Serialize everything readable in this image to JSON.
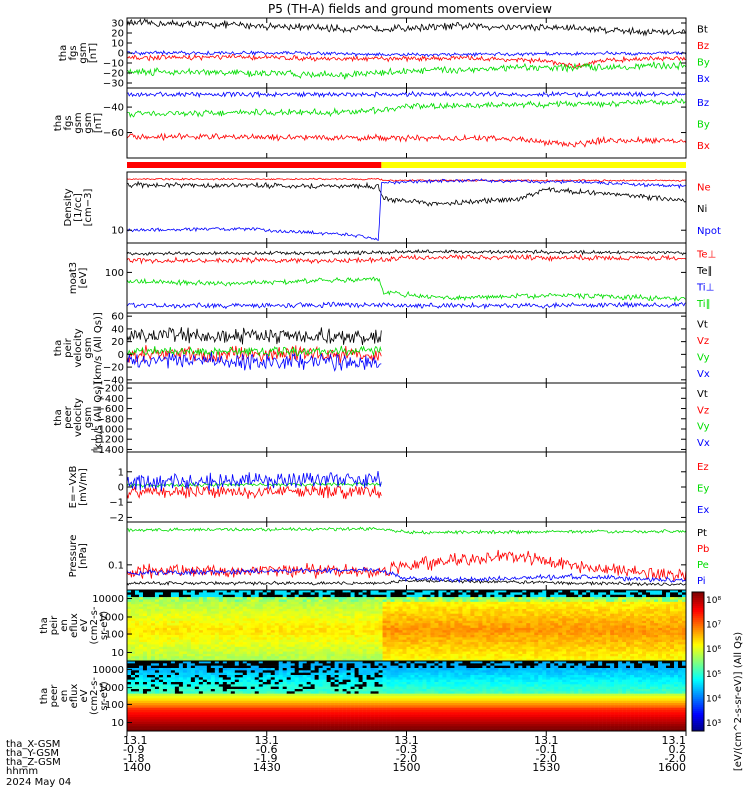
{
  "chart_data": {
    "type": "line",
    "title": "P5 (TH-A) fields and ground moments overview",
    "date": "2024 May 04",
    "x_ticks": [
      "1400",
      "1430",
      "1500",
      "1530",
      "1600"
    ],
    "orbit_rows": [
      {
        "label": "tha_X-GSM",
        "values": [
          "13.1",
          "13.1",
          "13.1",
          "13.1",
          "13.1"
        ]
      },
      {
        "label": "tha_Y-GSM",
        "values": [
          "-0.9",
          "-0.6",
          "-0.3",
          "-0.1",
          "0.2"
        ]
      },
      {
        "label": "tha_Z-GSM",
        "values": [
          "-1.8",
          "-1.9",
          "-2.0",
          "-2.0",
          "-2.0"
        ]
      },
      {
        "label": "hhmm",
        "values": [
          "1400",
          "1430",
          "1500",
          "1530",
          "1600"
        ]
      }
    ],
    "mode_bar": {
      "segments": [
        {
          "from": 0.0,
          "to": 0.455,
          "color": "#ff0000"
        },
        {
          "from": 0.455,
          "to": 1.0,
          "color": "#ffff00"
        }
      ]
    },
    "panels": [
      {
        "ylabel": [
          "tha",
          "fgs",
          "gsm",
          "[nT]"
        ],
        "ylim": [
          -35,
          35
        ],
        "ticks": [
          "30",
          "20",
          "10",
          "0",
          "−10",
          "−20",
          "−30"
        ],
        "series": [
          {
            "name": "Bt",
            "color": "#000000",
            "trace": [
              [
                0,
                30
              ],
              [
                0.1,
                29
              ],
              [
                0.2,
                28
              ],
              [
                0.3,
                26
              ],
              [
                0.4,
                24
              ],
              [
                0.5,
                25
              ],
              [
                0.6,
                27
              ],
              [
                0.7,
                26
              ],
              [
                0.8,
                25
              ],
              [
                0.9,
                22
              ],
              [
                1,
                20
              ]
            ],
            "noise": 3
          },
          {
            "name": "Bz",
            "color": "#ff0000",
            "trace": [
              [
                0,
                -5
              ],
              [
                0.2,
                -4
              ],
              [
                0.4,
                -6
              ],
              [
                0.6,
                -5
              ],
              [
                0.75,
                -8
              ],
              [
                0.8,
                -14
              ],
              [
                0.85,
                -7
              ],
              [
                1,
                -5
              ]
            ],
            "noise": 2
          },
          {
            "name": "By",
            "color": "#00dd00",
            "trace": [
              [
                0,
                -18
              ],
              [
                0.2,
                -20
              ],
              [
                0.4,
                -22
              ],
              [
                0.5,
                -18
              ],
              [
                0.7,
                -15
              ],
              [
                0.85,
                -14
              ],
              [
                1,
                -12
              ]
            ],
            "noise": 3
          },
          {
            "name": "Bx",
            "color": "#0000ff",
            "trace": [
              [
                0,
                0
              ],
              [
                0.3,
                0
              ],
              [
                0.5,
                -2
              ],
              [
                0.7,
                -1
              ],
              [
                1,
                0
              ]
            ],
            "noise": 1.5
          }
        ]
      },
      {
        "ylabel": [
          "tha",
          "fgs",
          "gsm",
          "gsm",
          "[nT]"
        ],
        "ylim": [
          -80,
          -25
        ],
        "ticks": [
          "−40",
          "−60"
        ],
        "series": [
          {
            "name": "Bz",
            "color": "#0000ff",
            "trace": [
              [
                0,
                -30
              ],
              [
                1,
                -30
              ]
            ],
            "noise": 1.5
          },
          {
            "name": "By",
            "color": "#00dd00",
            "trace": [
              [
                0,
                -45
              ],
              [
                0.4,
                -44
              ],
              [
                0.5,
                -40
              ],
              [
                0.7,
                -38
              ],
              [
                1,
                -36
              ]
            ],
            "noise": 2
          },
          {
            "name": "Bx",
            "color": "#ff0000",
            "trace": [
              [
                0,
                -63
              ],
              [
                0.4,
                -64
              ],
              [
                0.7,
                -65
              ],
              [
                0.8,
                -70
              ],
              [
                0.85,
                -66
              ],
              [
                1,
                -66
              ]
            ],
            "noise": 2
          }
        ]
      },
      {
        "ylabel": [
          "Density",
          "[1/cc]",
          "[cm−3]"
        ],
        "ylim": [
          0,
          1
        ],
        "ticks": [
          "10"
        ],
        "tick_pos": [
          0.82
        ],
        "series": [
          {
            "name": "Ne",
            "color": "#ff0000",
            "trace": [
              [
                0,
                0.9
              ],
              [
                0.45,
                0.9
              ],
              [
                0.46,
                0.88
              ],
              [
                1,
                0.88
              ]
            ],
            "noise": 0.01
          },
          {
            "name": "Ni",
            "color": "#000000",
            "trace": [
              [
                0,
                0.82
              ],
              [
                0.45,
                0.8
              ],
              [
                0.46,
                0.62
              ],
              [
                0.55,
                0.55
              ],
              [
                0.7,
                0.62
              ],
              [
                0.75,
                0.75
              ],
              [
                0.85,
                0.7
              ],
              [
                1,
                0.6
              ]
            ],
            "noise": 0.03
          },
          {
            "name": "Npot",
            "color": "#0000ff",
            "trace": [
              [
                0,
                0.18
              ],
              [
                0.2,
                0.2
              ],
              [
                0.4,
                0.12
              ],
              [
                0.45,
                0.05
              ],
              [
                0.455,
                0.85
              ],
              [
                0.6,
                0.88
              ],
              [
                0.8,
                0.86
              ],
              [
                1,
                0.8
              ]
            ],
            "noise": 0.02
          }
        ]
      },
      {
        "ylabel": [
          "moat3",
          "[eV]"
        ],
        "ylim": [
          0,
          1
        ],
        "ticks": [
          "100"
        ],
        "tick_pos": [
          0.42
        ],
        "series": [
          {
            "name": "Te⊥",
            "color": "#ff0000",
            "trace": [
              [
                0,
                0.75
              ],
              [
                0.45,
                0.75
              ],
              [
                0.5,
                0.8
              ],
              [
                1,
                0.78
              ]
            ],
            "noise": 0.03
          },
          {
            "name": "Te∥",
            "color": "#000000",
            "trace": [
              [
                0,
                0.85
              ],
              [
                0.45,
                0.86
              ],
              [
                0.5,
                0.88
              ],
              [
                1,
                0.86
              ]
            ],
            "noise": 0.02
          },
          {
            "name": "Ti⊥",
            "color": "#0000ff",
            "trace": [
              [
                0,
                0.1
              ],
              [
                0.45,
                0.12
              ],
              [
                0.5,
                0.1
              ],
              [
                1,
                0.12
              ]
            ],
            "noise": 0.03
          },
          {
            "name": "Ti∥",
            "color": "#00dd00",
            "trace": [
              [
                0,
                0.45
              ],
              [
                0.2,
                0.42
              ],
              [
                0.4,
                0.48
              ],
              [
                0.45,
                0.48
              ],
              [
                0.46,
                0.3
              ],
              [
                0.55,
                0.22
              ],
              [
                0.8,
                0.25
              ],
              [
                1,
                0.2
              ]
            ],
            "noise": 0.03
          }
        ]
      },
      {
        "ylabel": [
          "tha",
          "peir",
          "velocity",
          "gsm",
          "[km/s (All Qs)]"
        ],
        "ylim": [
          -45,
          65
        ],
        "ticks": [
          "60",
          "40",
          "20",
          "0",
          "−20",
          "−40"
        ],
        "stop": 0.455,
        "series": [
          {
            "name": "Vt",
            "color": "#000000",
            "trace": [
              [
                0,
                30
              ],
              [
                0.455,
                28
              ]
            ],
            "noise": 10
          },
          {
            "name": "Vz",
            "color": "#ff0000",
            "trace": [
              [
                0,
                0
              ],
              [
                0.455,
                0
              ]
            ],
            "noise": 10
          },
          {
            "name": "Vy",
            "color": "#00dd00",
            "trace": [
              [
                0,
                5
              ],
              [
                0.455,
                5
              ]
            ],
            "noise": 6
          },
          {
            "name": "Vx",
            "color": "#0000ff",
            "trace": [
              [
                0,
                -10
              ],
              [
                0.455,
                -12
              ]
            ],
            "noise": 10
          }
        ]
      },
      {
        "ylabel": [
          "tha",
          "peer",
          "velocity",
          "gsm",
          "[km/s (All Qs)]"
        ],
        "ylim": [
          -1450,
          -100
        ],
        "ticks": [
          "−200",
          "−400",
          "−600",
          "−800",
          "−1000",
          "−1200",
          "−1400"
        ],
        "series": [
          {
            "name": "Vt",
            "color": "#000000",
            "trace": [],
            "noise": 0
          },
          {
            "name": "Vz",
            "color": "#ff0000",
            "trace": [],
            "noise": 0
          },
          {
            "name": "Vy",
            "color": "#00dd00",
            "trace": [],
            "noise": 0
          },
          {
            "name": "Vx",
            "color": "#0000ff",
            "trace": [],
            "noise": 0
          }
        ]
      },
      {
        "ylabel": [
          "E=−VxB",
          "[mV/m]"
        ],
        "ylim": [
          -2.3,
          2.3
        ],
        "ticks": [
          "1",
          "0",
          "−1",
          "−2"
        ],
        "stop": 0.455,
        "series": [
          {
            "name": "Ez",
            "color": "#ff0000",
            "trace": [
              [
                0,
                -0.3
              ],
              [
                0.455,
                -0.3
              ]
            ],
            "noise": 0.35
          },
          {
            "name": "Ey",
            "color": "#00dd00",
            "trace": [
              [
                0,
                0.1
              ],
              [
                0.455,
                0.2
              ]
            ],
            "noise": 0.1
          },
          {
            "name": "Ex",
            "color": "#0000ff",
            "trace": [
              [
                0,
                0.3
              ],
              [
                0.455,
                0.5
              ]
            ],
            "noise": 0.45
          }
        ]
      },
      {
        "ylabel": [
          "Pressure",
          "[nPa]"
        ],
        "ylim": [
          0,
          1
        ],
        "ticks": [
          "0.1"
        ],
        "tick_pos": [
          0.63
        ],
        "series": [
          {
            "name": "Pt",
            "color": "#000000",
            "trace": [
              [
                0,
                0.1
              ],
              [
                0.45,
                0.1
              ],
              [
                0.5,
                0.14
              ],
              [
                1,
                0.08
              ]
            ],
            "noise": 0.02
          },
          {
            "name": "Pb",
            "color": "#ff0000",
            "trace": [
              [
                0,
                0.28
              ],
              [
                0.45,
                0.28
              ],
              [
                0.5,
                0.35
              ],
              [
                0.6,
                0.45
              ],
              [
                0.7,
                0.5
              ],
              [
                0.85,
                0.3
              ],
              [
                1,
                0.22
              ]
            ],
            "noise": 0.08
          },
          {
            "name": "Pe",
            "color": "#00dd00",
            "trace": [
              [
                0,
                0.88
              ],
              [
                0.45,
                0.9
              ],
              [
                0.5,
                0.85
              ],
              [
                1,
                0.86
              ]
            ],
            "noise": 0.02
          },
          {
            "name": "Pi",
            "color": "#0000ff",
            "trace": [
              [
                0,
                0.25
              ],
              [
                0.45,
                0.3
              ],
              [
                0.5,
                0.17
              ],
              [
                0.6,
                0.15
              ],
              [
                0.8,
                0.2
              ],
              [
                1,
                0.14
              ]
            ],
            "noise": 0.03
          }
        ]
      }
    ],
    "spectrograms": [
      {
        "ylabel": [
          "tha",
          "peir",
          "en",
          "eflux",
          "eV",
          "(cm2-s-",
          "sr-eV)"
        ],
        "ticks": [
          "10000",
          "1000",
          "100",
          "10"
        ],
        "kind": "ion"
      },
      {
        "ylabel": [
          "tha",
          "peer",
          "en",
          "eflux",
          "eV",
          "(cm2-s-",
          "sr-eV)"
        ],
        "ticks": [
          "10000",
          "1000",
          "100",
          "10"
        ],
        "kind": "elec"
      }
    ],
    "colorbar": {
      "ticks": [
        "10⁸",
        "10⁷",
        "10⁶",
        "10⁵",
        "10⁴",
        "10³"
      ],
      "label": "[eV/(cm^2-s-sr-eV)] (All Qs)"
    }
  }
}
